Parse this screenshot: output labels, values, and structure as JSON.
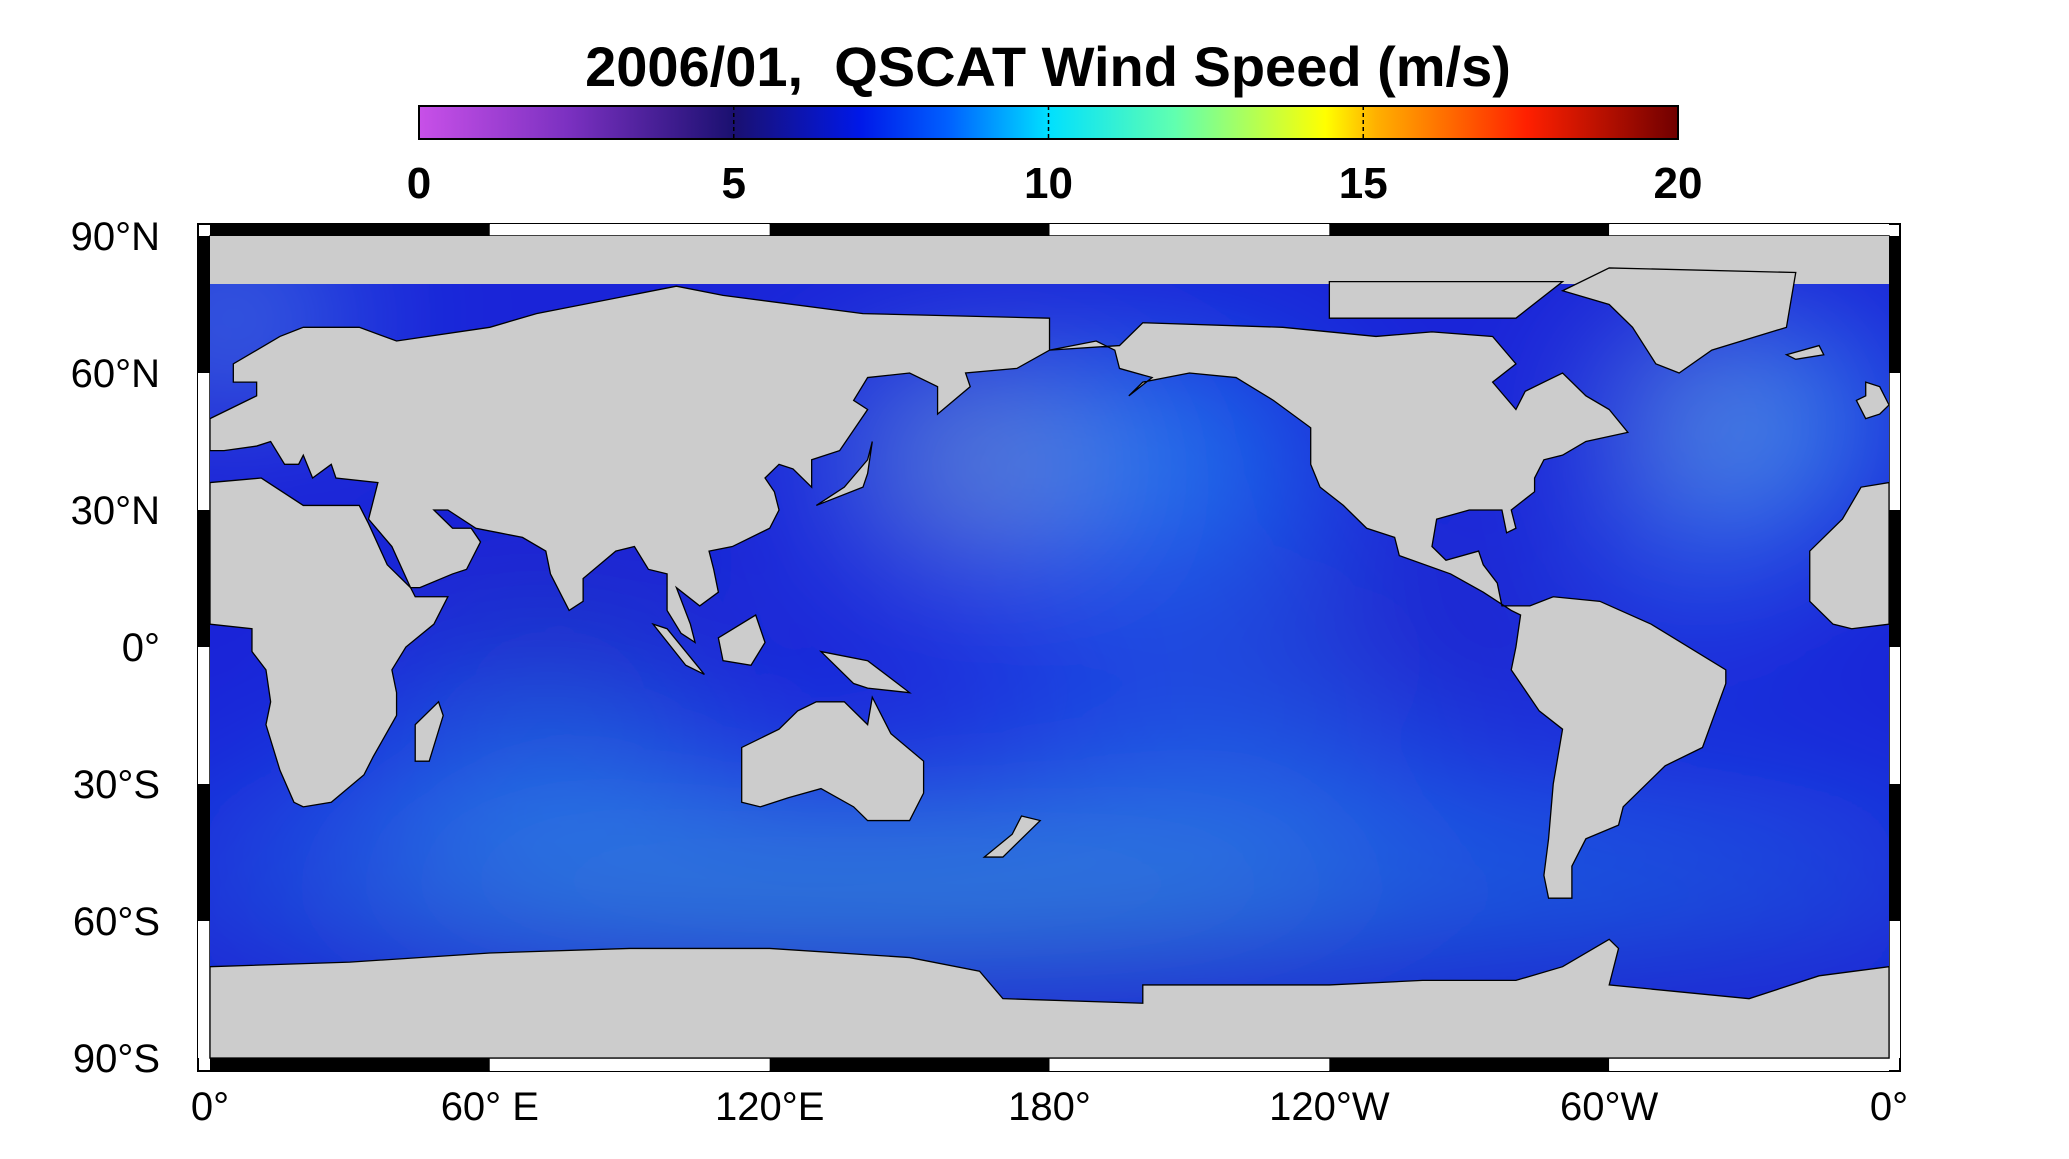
{
  "title": "2006/01,  QSCAT Wind Speed (m/s)",
  "colorbar": {
    "range": [
      0,
      20
    ],
    "ticks": [
      0,
      5,
      10,
      15,
      20
    ]
  },
  "map": {
    "lat_labels": [
      "90°N",
      "60°N",
      "30°N",
      "0°",
      "30°S",
      "60°S",
      "90°S"
    ],
    "lon_labels": [
      "0°",
      "60° E",
      "120°E",
      "180°",
      "120°W",
      "60°W",
      "0°"
    ]
  }
}
